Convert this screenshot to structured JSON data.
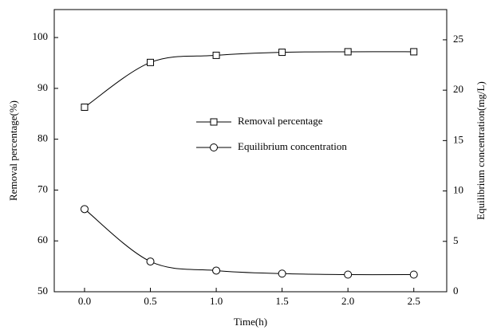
{
  "chart_data": {
    "type": "line",
    "x_label": "Time(h)",
    "y_label": "Removal percentage(%)",
    "y2_label": "Equilibrium concentration(mg/L)",
    "x": [
      0,
      0.5,
      1.0,
      1.5,
      2.0,
      2.5
    ],
    "series": [
      {
        "name": "Removal percentage",
        "color": "#000000",
        "marker": "square",
        "values": [
          86.3,
          95.1,
          96.5,
          97.1,
          97.2,
          97.2
        ]
      },
      {
        "name": "Equilibrium concentration",
        "color": "#000000",
        "marker": "circle",
        "axis": "y2",
        "values": [
          8.2,
          3.0,
          2.1,
          1.8,
          1.7,
          1.7
        ]
      }
    ],
    "xlim": [
      -0.23,
      2.75
    ],
    "xticks": [
      {
        "value": 0,
        "label": "0.0"
      },
      {
        "value": 0.5,
        "label": "0.5"
      },
      {
        "value": 1,
        "label": "1.0"
      },
      {
        "value": 1.5,
        "label": "1.5"
      },
      {
        "value": 2,
        "label": "2.0"
      },
      {
        "value": 2.5,
        "label": "2.5"
      }
    ],
    "ylim": [
      50,
      105.5
    ],
    "yticks": [
      50,
      60,
      70,
      80,
      90,
      100
    ],
    "y2lim": [
      0,
      28
    ],
    "y2ticks": [
      0,
      5,
      10,
      15,
      20,
      25
    ],
    "grid": false,
    "legend": "center"
  }
}
